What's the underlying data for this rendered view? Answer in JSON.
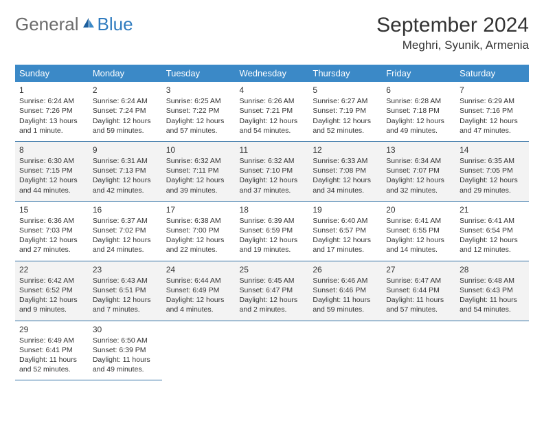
{
  "logo": {
    "word1": "General",
    "word2": "Blue"
  },
  "title": "September 2024",
  "location": "Meghri, Syunik, Armenia",
  "colors": {
    "header_bg": "#3b89c7",
    "header_text": "#ffffff",
    "cell_border": "#2f6fa3",
    "alt_row_bg": "#f3f3f3",
    "text": "#333333",
    "logo_gray": "#6b6b6b",
    "logo_blue": "#2f7bbf"
  },
  "weekdays": [
    "Sunday",
    "Monday",
    "Tuesday",
    "Wednesday",
    "Thursday",
    "Friday",
    "Saturday"
  ],
  "weeks": [
    {
      "alt": false,
      "days": [
        {
          "n": "1",
          "sr": "Sunrise: 6:24 AM",
          "ss": "Sunset: 7:26 PM",
          "dl": "Daylight: 13 hours and 1 minute."
        },
        {
          "n": "2",
          "sr": "Sunrise: 6:24 AM",
          "ss": "Sunset: 7:24 PM",
          "dl": "Daylight: 12 hours and 59 minutes."
        },
        {
          "n": "3",
          "sr": "Sunrise: 6:25 AM",
          "ss": "Sunset: 7:22 PM",
          "dl": "Daylight: 12 hours and 57 minutes."
        },
        {
          "n": "4",
          "sr": "Sunrise: 6:26 AM",
          "ss": "Sunset: 7:21 PM",
          "dl": "Daylight: 12 hours and 54 minutes."
        },
        {
          "n": "5",
          "sr": "Sunrise: 6:27 AM",
          "ss": "Sunset: 7:19 PM",
          "dl": "Daylight: 12 hours and 52 minutes."
        },
        {
          "n": "6",
          "sr": "Sunrise: 6:28 AM",
          "ss": "Sunset: 7:18 PM",
          "dl": "Daylight: 12 hours and 49 minutes."
        },
        {
          "n": "7",
          "sr": "Sunrise: 6:29 AM",
          "ss": "Sunset: 7:16 PM",
          "dl": "Daylight: 12 hours and 47 minutes."
        }
      ]
    },
    {
      "alt": true,
      "days": [
        {
          "n": "8",
          "sr": "Sunrise: 6:30 AM",
          "ss": "Sunset: 7:15 PM",
          "dl": "Daylight: 12 hours and 44 minutes."
        },
        {
          "n": "9",
          "sr": "Sunrise: 6:31 AM",
          "ss": "Sunset: 7:13 PM",
          "dl": "Daylight: 12 hours and 42 minutes."
        },
        {
          "n": "10",
          "sr": "Sunrise: 6:32 AM",
          "ss": "Sunset: 7:11 PM",
          "dl": "Daylight: 12 hours and 39 minutes."
        },
        {
          "n": "11",
          "sr": "Sunrise: 6:32 AM",
          "ss": "Sunset: 7:10 PM",
          "dl": "Daylight: 12 hours and 37 minutes."
        },
        {
          "n": "12",
          "sr": "Sunrise: 6:33 AM",
          "ss": "Sunset: 7:08 PM",
          "dl": "Daylight: 12 hours and 34 minutes."
        },
        {
          "n": "13",
          "sr": "Sunrise: 6:34 AM",
          "ss": "Sunset: 7:07 PM",
          "dl": "Daylight: 12 hours and 32 minutes."
        },
        {
          "n": "14",
          "sr": "Sunrise: 6:35 AM",
          "ss": "Sunset: 7:05 PM",
          "dl": "Daylight: 12 hours and 29 minutes."
        }
      ]
    },
    {
      "alt": false,
      "days": [
        {
          "n": "15",
          "sr": "Sunrise: 6:36 AM",
          "ss": "Sunset: 7:03 PM",
          "dl": "Daylight: 12 hours and 27 minutes."
        },
        {
          "n": "16",
          "sr": "Sunrise: 6:37 AM",
          "ss": "Sunset: 7:02 PM",
          "dl": "Daylight: 12 hours and 24 minutes."
        },
        {
          "n": "17",
          "sr": "Sunrise: 6:38 AM",
          "ss": "Sunset: 7:00 PM",
          "dl": "Daylight: 12 hours and 22 minutes."
        },
        {
          "n": "18",
          "sr": "Sunrise: 6:39 AM",
          "ss": "Sunset: 6:59 PM",
          "dl": "Daylight: 12 hours and 19 minutes."
        },
        {
          "n": "19",
          "sr": "Sunrise: 6:40 AM",
          "ss": "Sunset: 6:57 PM",
          "dl": "Daylight: 12 hours and 17 minutes."
        },
        {
          "n": "20",
          "sr": "Sunrise: 6:41 AM",
          "ss": "Sunset: 6:55 PM",
          "dl": "Daylight: 12 hours and 14 minutes."
        },
        {
          "n": "21",
          "sr": "Sunrise: 6:41 AM",
          "ss": "Sunset: 6:54 PM",
          "dl": "Daylight: 12 hours and 12 minutes."
        }
      ]
    },
    {
      "alt": true,
      "days": [
        {
          "n": "22",
          "sr": "Sunrise: 6:42 AM",
          "ss": "Sunset: 6:52 PM",
          "dl": "Daylight: 12 hours and 9 minutes."
        },
        {
          "n": "23",
          "sr": "Sunrise: 6:43 AM",
          "ss": "Sunset: 6:51 PM",
          "dl": "Daylight: 12 hours and 7 minutes."
        },
        {
          "n": "24",
          "sr": "Sunrise: 6:44 AM",
          "ss": "Sunset: 6:49 PM",
          "dl": "Daylight: 12 hours and 4 minutes."
        },
        {
          "n": "25",
          "sr": "Sunrise: 6:45 AM",
          "ss": "Sunset: 6:47 PM",
          "dl": "Daylight: 12 hours and 2 minutes."
        },
        {
          "n": "26",
          "sr": "Sunrise: 6:46 AM",
          "ss": "Sunset: 6:46 PM",
          "dl": "Daylight: 11 hours and 59 minutes."
        },
        {
          "n": "27",
          "sr": "Sunrise: 6:47 AM",
          "ss": "Sunset: 6:44 PM",
          "dl": "Daylight: 11 hours and 57 minutes."
        },
        {
          "n": "28",
          "sr": "Sunrise: 6:48 AM",
          "ss": "Sunset: 6:43 PM",
          "dl": "Daylight: 11 hours and 54 minutes."
        }
      ]
    },
    {
      "alt": false,
      "days": [
        {
          "n": "29",
          "sr": "Sunrise: 6:49 AM",
          "ss": "Sunset: 6:41 PM",
          "dl": "Daylight: 11 hours and 52 minutes."
        },
        {
          "n": "30",
          "sr": "Sunrise: 6:50 AM",
          "ss": "Sunset: 6:39 PM",
          "dl": "Daylight: 11 hours and 49 minutes."
        },
        null,
        null,
        null,
        null,
        null
      ]
    }
  ]
}
